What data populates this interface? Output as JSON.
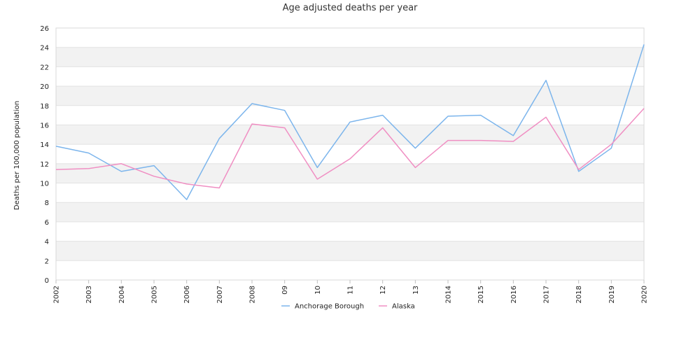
{
  "chart_data": {
    "type": "line",
    "title": "Age adjusted deaths per year",
    "xlabel": "",
    "ylabel": "Deaths per 100,000 population",
    "ylim": [
      0,
      26
    ],
    "y_ticks": [
      0,
      2,
      4,
      6,
      8,
      10,
      12,
      14,
      16,
      18,
      20,
      22,
      24,
      26
    ],
    "categories": [
      "2002",
      "2003",
      "2004",
      "2005",
      "2006",
      "2007",
      "2008",
      "09",
      "10",
      "11",
      "12",
      "13",
      "2014",
      "2015",
      "2016",
      "2017",
      "2018",
      "2019",
      "2020"
    ],
    "grid": "horizontal alternating bands",
    "legend_position": "bottom",
    "series": [
      {
        "name": "Anchorage Borough",
        "color": "#7cb5ec",
        "values": [
          13.8,
          13.1,
          11.2,
          11.8,
          8.3,
          14.6,
          18.2,
          17.5,
          11.6,
          16.3,
          17.0,
          13.6,
          16.9,
          17.0,
          14.9,
          20.6,
          11.2,
          13.6,
          24.3
        ]
      },
      {
        "name": "Alaska",
        "color": "#f08fc3",
        "values": [
          11.4,
          11.5,
          12.0,
          10.7,
          9.9,
          9.5,
          16.1,
          15.7,
          10.4,
          12.5,
          15.7,
          11.6,
          14.4,
          14.4,
          14.3,
          16.8,
          11.4,
          14.0,
          17.7
        ]
      }
    ]
  }
}
